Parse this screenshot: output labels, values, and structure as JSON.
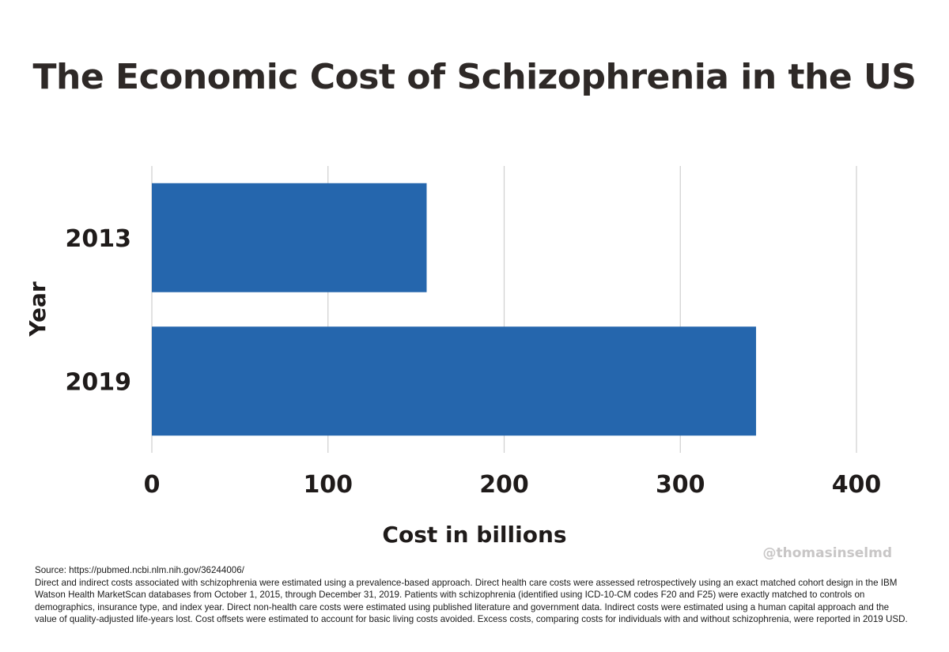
{
  "chart_data": {
    "type": "bar",
    "orientation": "horizontal",
    "title": "The Economic Cost of Schizophrenia in the US",
    "categories": [
      "2013",
      "2019"
    ],
    "values": [
      156,
      343
    ],
    "xlabel": "Cost in billions",
    "ylabel": "Year",
    "xlim": [
      0,
      400
    ],
    "xticks": [
      0,
      100,
      200,
      300,
      400
    ],
    "grid": "vertical",
    "bar_color": "#2566ad",
    "grid_color": "#cfcfcf"
  },
  "watermark": "@thomasinselmd",
  "footnote": {
    "source": "Source: https://pubmed.ncbi.nlm.nih.gov/36244006/",
    "body": "Direct and indirect costs associated with schizophrenia were estimated using a prevalence-based approach. Direct health care costs were assessed retrospectively using an exact matched cohort design in the IBM Watson Health MarketScan databases from October 1, 2015, through December 31, 2019. Patients with schizophrenia (identified using ICD-10-CM codes F20 and F25) were exactly matched to controls on demographics, insurance type, and index year. Direct non-health care costs were estimated using published literature and government data. Indirect costs were estimated using a human capital approach and the value of quality-adjusted life-years lost. Cost offsets were estimated to account for basic living costs avoided. Excess costs, comparing costs for individuals with and without schizophrenia, were reported in 2019 USD."
  }
}
